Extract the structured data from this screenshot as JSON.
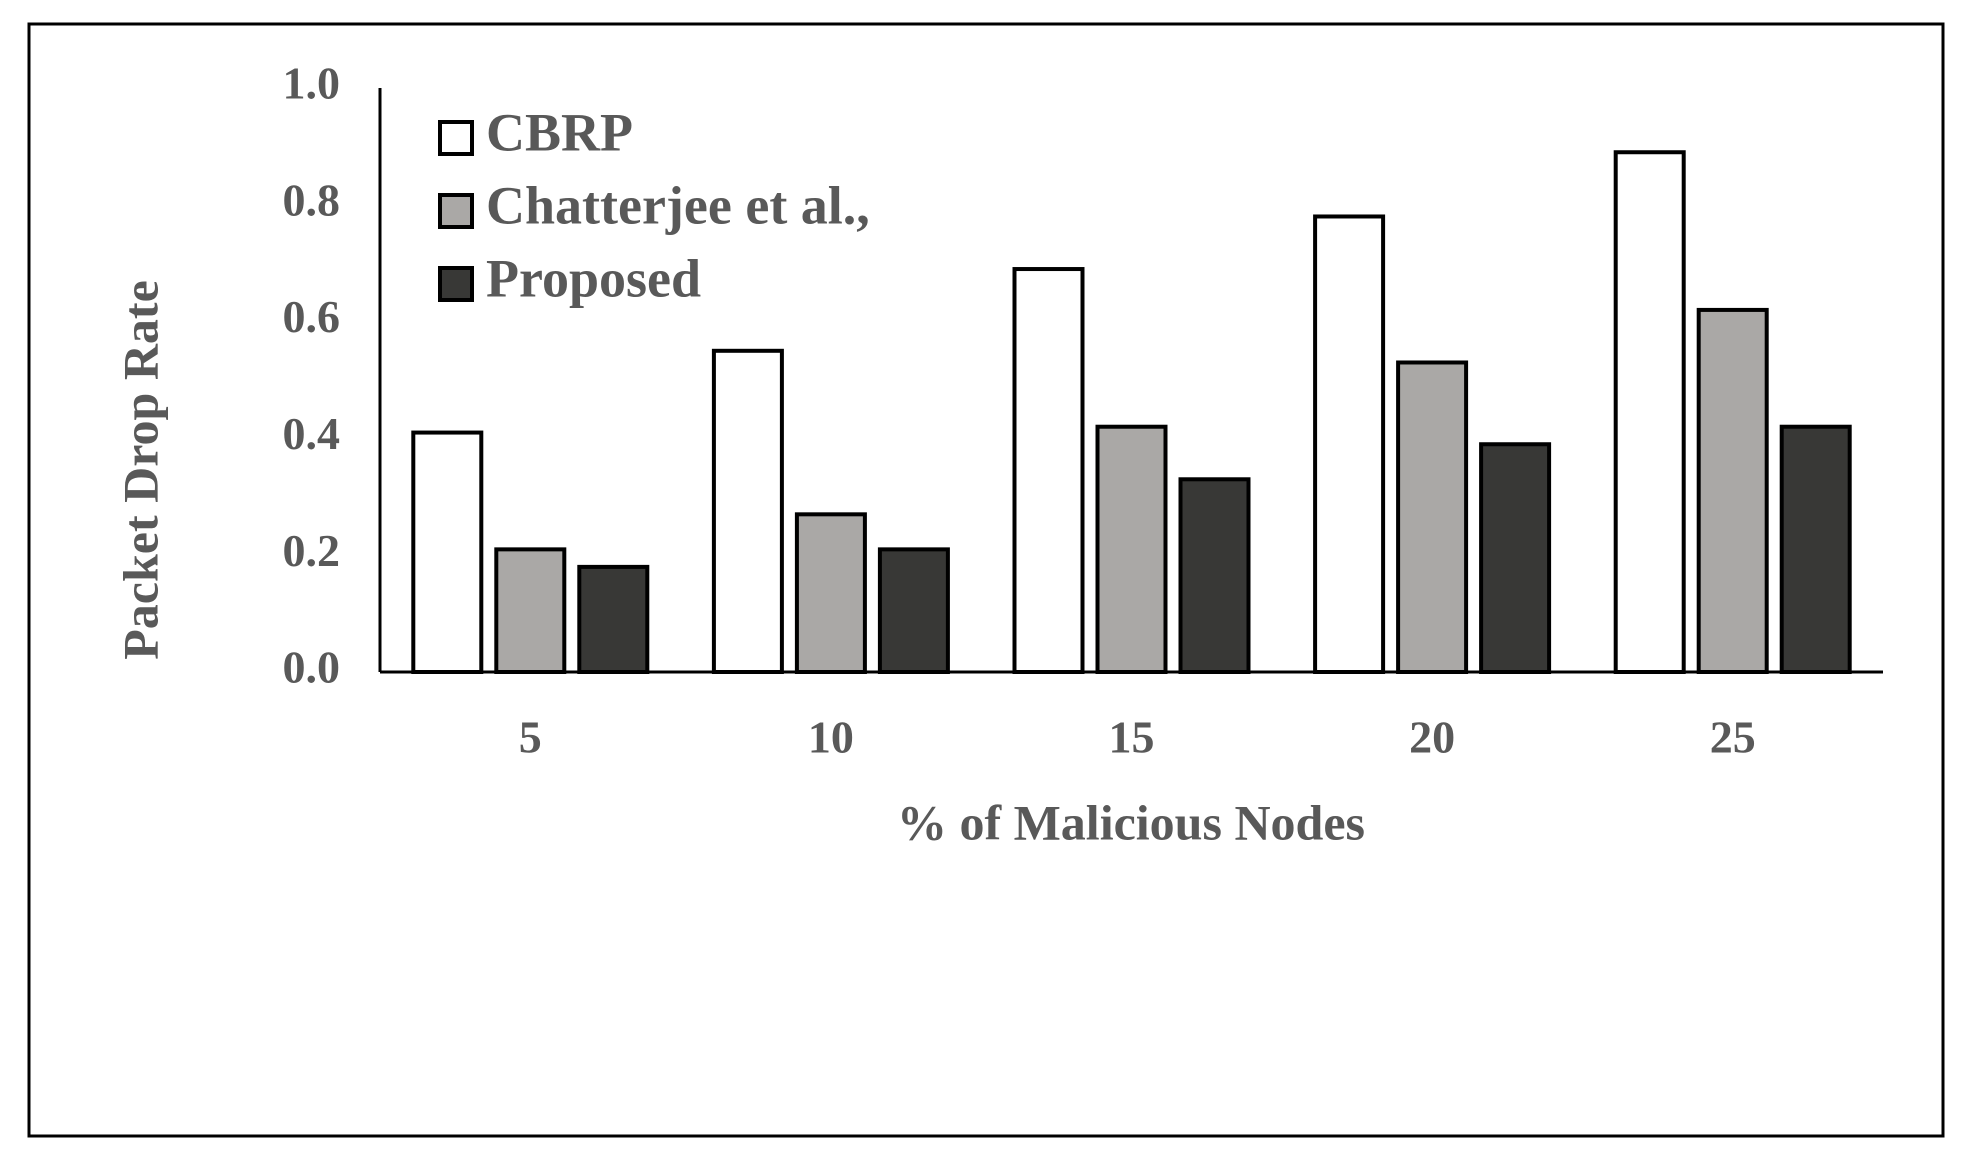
{
  "chart_data": {
    "type": "bar",
    "categories": [
      "5",
      "10",
      "15",
      "20",
      "25"
    ],
    "series": [
      {
        "name": "CBRP",
        "color": "#ffffff",
        "values": [
          0.41,
          0.55,
          0.69,
          0.78,
          0.89
        ]
      },
      {
        "name": "Chatterjee et al.,",
        "color": "#aaa8a6",
        "values": [
          0.21,
          0.27,
          0.42,
          0.53,
          0.62
        ]
      },
      {
        "name": "Proposed",
        "color": "#383836",
        "values": [
          0.18,
          0.21,
          0.33,
          0.39,
          0.42
        ]
      }
    ],
    "x_label": "% of Malicious Nodes",
    "y_label": "Packet Drop Rate",
    "ylim": [
      0,
      1
    ],
    "yticks": [
      {
        "value": 0,
        "label": "0.0"
      },
      0.2,
      0.4,
      0.6,
      0.8,
      {
        "value": 1,
        "label": "1.0"
      }
    ],
    "grid": false,
    "legend": "upper left"
  }
}
